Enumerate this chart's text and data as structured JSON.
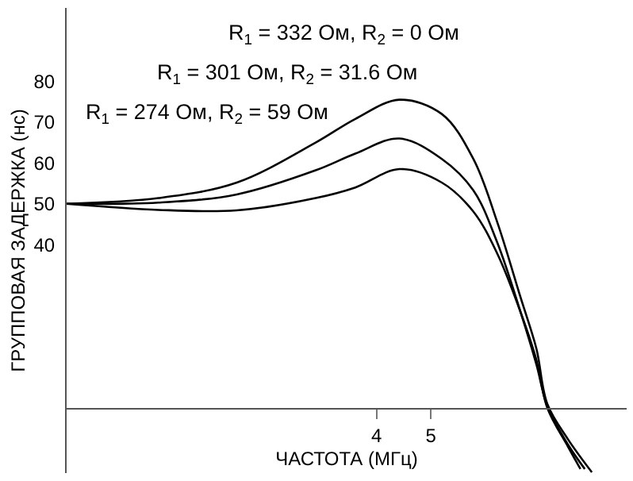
{
  "chart_data": {
    "type": "line",
    "xlabel": "ЧАСТОТА (МГц)",
    "ylabel": "ГРУППОВАЯ ЗАДЕРЖКА (нс)",
    "xlim": [
      -1.7,
      8.6
    ],
    "xticks": [
      4,
      5
    ],
    "ylim": [
      -16,
      98
    ],
    "yticks": [
      40,
      50,
      60,
      70,
      80
    ],
    "marker": "none",
    "line_style": "solid",
    "annotations": [
      "R$_{1}$ = 332 Ом, R$_{2}$ = 0 Ом",
      "R$_{1}$ = 301 Ом, R$_{2}$ = 31.6 Ом",
      "R$_{1}$ = 274 Ом, R$_{2}$ = 59 Ом"
    ],
    "series": [
      {
        "color": "#000000",
        "x": [
          -1.7,
          -0.01,
          1.43,
          2.88,
          3.61,
          4.42,
          5.2,
          5.78,
          6.22,
          6.65,
          6.94,
          7.14,
          7.52,
          7.96
        ],
        "values": [
          50,
          51.4,
          55.2,
          65,
          70.8,
          75.5,
          72,
          61,
          45.5,
          27,
          14.5,
          1,
          -7.7,
          -15.8
        ]
      },
      {
        "color": "#000000",
        "x": [
          -1.7,
          -0.01,
          1.43,
          2.88,
          3.61,
          4.42,
          5.2,
          5.78,
          6.22,
          6.65,
          6.94,
          7.14,
          7.52,
          7.83
        ],
        "values": [
          50,
          50.3,
          52.3,
          58.2,
          62.3,
          66,
          61,
          53.3,
          40.5,
          23.4,
          10.6,
          0.5,
          -9,
          -15
        ]
      },
      {
        "color": "#000000",
        "x": [
          -1.7,
          -0.01,
          1.43,
          2.88,
          3.61,
          4.42,
          5.2,
          5.78,
          6.22,
          6.65,
          6.94,
          7.14,
          7.52,
          7.75
        ],
        "values": [
          50,
          48.5,
          48.4,
          51.4,
          54,
          58.5,
          55.2,
          48.1,
          37.8,
          23.4,
          11.7,
          0,
          -9.5,
          -15
        ]
      }
    ]
  }
}
